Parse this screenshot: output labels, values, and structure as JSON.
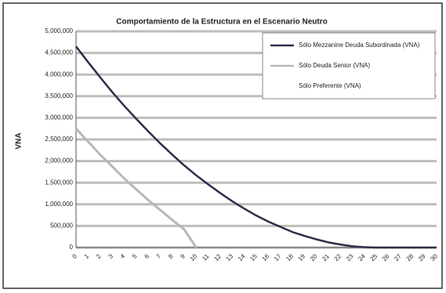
{
  "chart_data": {
    "type": "line",
    "title": "Comportamiento de la Estructura en el Escenario Neutro",
    "y_label": "VNA",
    "categories": [
      "0",
      "1",
      "2",
      "3",
      "4",
      "5",
      "6",
      "7",
      "8",
      "9",
      "10",
      "11",
      "12",
      "13",
      "14",
      "15",
      "16",
      "17",
      "18",
      "19",
      "20",
      "21",
      "22",
      "23",
      "24",
      "25",
      "26",
      "27",
      "28",
      "29",
      "30"
    ],
    "series": [
      {
        "name": "Sólo Mezzanine Deuda Subordinada (VNA)",
        "color": "#2e2e4a",
        "values": [
          4650000,
          4290000,
          3940000,
          3600000,
          3280000,
          2980000,
          2690000,
          2410000,
          2150000,
          1900000,
          1670000,
          1460000,
          1260000,
          1070000,
          900000,
          740000,
          600000,
          480000,
          360000,
          270000,
          190000,
          120000,
          70000,
          30000,
          10000,
          0,
          0,
          0,
          0,
          0,
          0
        ]
      },
      {
        "name": "Sólo Deuda Senior (VNA)",
        "color": "#b8b8b8",
        "values": [
          2750000,
          2450000,
          2150000,
          1880000,
          1600000,
          1350000,
          1100000,
          870000,
          640000,
          420000,
          0,
          null,
          null,
          null,
          null,
          null,
          null,
          null,
          null,
          null,
          null,
          null,
          null,
          null,
          null,
          null,
          null,
          null,
          null,
          null,
          null
        ]
      },
      {
        "name": "Sólo Preferente (VNA)",
        "color": "#ffffff",
        "values": [
          null,
          null,
          null,
          null,
          null,
          null,
          null,
          null,
          null,
          null,
          null,
          null,
          null,
          null,
          null,
          null,
          null,
          null,
          null,
          null,
          null,
          null,
          null,
          null,
          null,
          null,
          null,
          null,
          null,
          null,
          null
        ]
      }
    ],
    "ylim": [
      0,
      5000000
    ],
    "yticks": [
      0,
      {
        "value": 500000,
        "label": "500,000"
      },
      {
        "value": 1000000,
        "label": "1,000,000"
      },
      {
        "value": 1500000,
        "label": "1,500,000"
      },
      {
        "value": 2000000,
        "label": "2,000,000"
      },
      {
        "value": 2500000,
        "label": "2,500,000"
      },
      {
        "value": 3000000,
        "label": "3,000,000"
      },
      {
        "value": 3500000,
        "label": "3,500,000"
      },
      {
        "value": 4000000,
        "label": "4,000,000"
      },
      {
        "value": 4500000,
        "label": "4,500,000"
      },
      {
        "value": 5000000,
        "label": "5,000,000"
      }
    ],
    "grid": true,
    "legend": "top-right"
  }
}
